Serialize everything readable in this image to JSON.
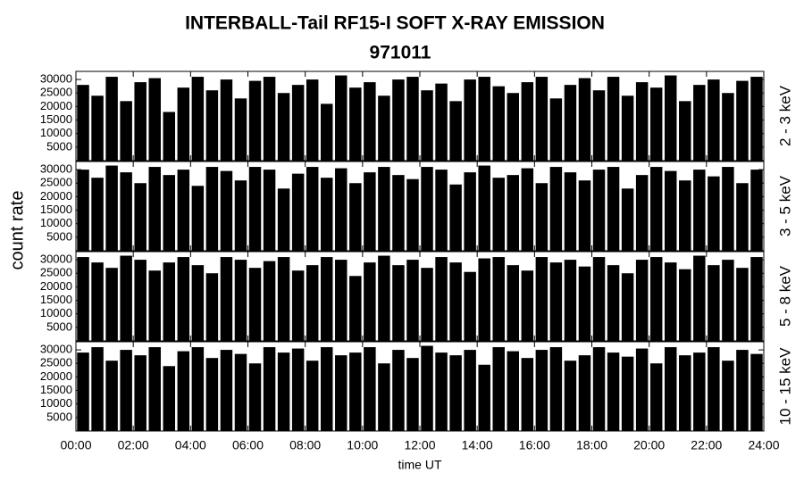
{
  "title": "INTERBALL-Tail RF15-I SOFT X-RAY EMISSION",
  "subtitle": "971011",
  "ylabel": "count rate",
  "xlabel": "time UT",
  "chart_data": [
    {
      "type": "bar",
      "label": "2 - 3 keV",
      "color": "#000000",
      "ylim": [
        0,
        33000
      ],
      "yticks": [
        5000,
        10000,
        15000,
        20000,
        25000,
        30000
      ],
      "xlim": [
        0,
        24
      ],
      "x": [
        0,
        0.5,
        1,
        1.5,
        2,
        2.5,
        3,
        3.5,
        4,
        4.5,
        5,
        5.5,
        6,
        6.5,
        7,
        7.5,
        8,
        8.5,
        9,
        9.5,
        10,
        10.5,
        11,
        11.5,
        12,
        12.5,
        13,
        13.5,
        14,
        14.5,
        15,
        15.5,
        16,
        16.5,
        17,
        17.5,
        18,
        18.5,
        19,
        19.5,
        20,
        20.5,
        21,
        21.5,
        22,
        22.5,
        23,
        23.5
      ],
      "values": [
        28000,
        24000,
        31000,
        22000,
        29000,
        30500,
        18000,
        27000,
        31000,
        26000,
        30000,
        23000,
        29500,
        31000,
        25000,
        28000,
        30000,
        21000,
        31500,
        27000,
        29000,
        24000,
        30000,
        31000,
        26000,
        28500,
        22000,
        30000,
        31000,
        27500,
        25000,
        29000,
        31000,
        23000,
        28000,
        30500,
        26000,
        31000,
        24000,
        29000,
        27000,
        31500,
        22000,
        28000,
        30000,
        25000,
        29500,
        31000
      ]
    },
    {
      "type": "bar",
      "label": "3 - 5 keV",
      "color": "#000000",
      "ylim": [
        0,
        33000
      ],
      "yticks": [
        5000,
        10000,
        15000,
        20000,
        25000,
        30000
      ],
      "xlim": [
        0,
        24
      ],
      "x": [
        0,
        0.5,
        1,
        1.5,
        2,
        2.5,
        3,
        3.5,
        4,
        4.5,
        5,
        5.5,
        6,
        6.5,
        7,
        7.5,
        8,
        8.5,
        9,
        9.5,
        10,
        10.5,
        11,
        11.5,
        12,
        12.5,
        13,
        13.5,
        14,
        14.5,
        15,
        15.5,
        16,
        16.5,
        17,
        17.5,
        18,
        18.5,
        19,
        19.5,
        20,
        20.5,
        21,
        21.5,
        22,
        22.5,
        23,
        23.5
      ],
      "values": [
        30000,
        27000,
        31500,
        29000,
        25000,
        31000,
        28000,
        30000,
        24000,
        31000,
        29500,
        26000,
        31000,
        30000,
        23000,
        28500,
        31000,
        27000,
        30500,
        25000,
        29000,
        31000,
        28000,
        26500,
        31000,
        30000,
        24500,
        29000,
        31500,
        27000,
        28000,
        30500,
        25000,
        31000,
        29000,
        26000,
        30000,
        31000,
        23000,
        28000,
        31000,
        29500,
        26000,
        30000,
        27500,
        31000,
        25000,
        30000
      ]
    },
    {
      "type": "bar",
      "label": "5 - 8 keV",
      "color": "#000000",
      "ylim": [
        0,
        33000
      ],
      "yticks": [
        5000,
        10000,
        15000,
        20000,
        25000,
        30000
      ],
      "xlim": [
        0,
        24
      ],
      "x": [
        0,
        0.5,
        1,
        1.5,
        2,
        2.5,
        3,
        3.5,
        4,
        4.5,
        5,
        5.5,
        6,
        6.5,
        7,
        7.5,
        8,
        8.5,
        9,
        9.5,
        10,
        10.5,
        11,
        11.5,
        12,
        12.5,
        13,
        13.5,
        14,
        14.5,
        15,
        15.5,
        16,
        16.5,
        17,
        17.5,
        18,
        18.5,
        19,
        19.5,
        20,
        20.5,
        21,
        21.5,
        22,
        22.5,
        23,
        23.5
      ],
      "values": [
        31000,
        29000,
        27000,
        31500,
        30000,
        26000,
        29000,
        31000,
        28000,
        25000,
        31000,
        30000,
        27000,
        29500,
        31000,
        26000,
        28000,
        31000,
        30000,
        24000,
        29000,
        31500,
        28000,
        30000,
        27000,
        31000,
        29000,
        25500,
        30500,
        31000,
        28000,
        26000,
        31000,
        29000,
        30000,
        27500,
        31000,
        28000,
        25000,
        30000,
        31000,
        29000,
        26500,
        31500,
        28000,
        30000,
        27000,
        31000
      ]
    },
    {
      "type": "bar",
      "label": "10 - 15 keV",
      "color": "#000000",
      "ylim": [
        0,
        33000
      ],
      "yticks": [
        5000,
        10000,
        15000,
        20000,
        25000,
        30000
      ],
      "xlim": [
        0,
        24
      ],
      "x": [
        0,
        0.5,
        1,
        1.5,
        2,
        2.5,
        3,
        3.5,
        4,
        4.5,
        5,
        5.5,
        6,
        6.5,
        7,
        7.5,
        8,
        8.5,
        9,
        9.5,
        10,
        10.5,
        11,
        11.5,
        12,
        12.5,
        13,
        13.5,
        14,
        14.5,
        15,
        15.5,
        16,
        16.5,
        17,
        17.5,
        18,
        18.5,
        19,
        19.5,
        20,
        20.5,
        21,
        21.5,
        22,
        22.5,
        23,
        23.5
      ],
      "values": [
        29000,
        31000,
        26000,
        30000,
        28000,
        31000,
        24000,
        29500,
        31000,
        27000,
        30000,
        28500,
        25000,
        31000,
        29000,
        30500,
        26000,
        31000,
        28000,
        29000,
        31000,
        25000,
        30000,
        27000,
        31500,
        29000,
        28000,
        30000,
        24500,
        31000,
        29500,
        27000,
        30000,
        31000,
        26000,
        28000,
        31000,
        29000,
        27500,
        30500,
        25000,
        31000,
        28000,
        29000,
        31000,
        26000,
        30000,
        28500
      ],
      "xticks": [
        {
          "value": 0,
          "label": "00:00"
        },
        {
          "value": 2,
          "label": "02:00"
        },
        {
          "value": 4,
          "label": "04:00"
        },
        {
          "value": 6,
          "label": "06:00"
        },
        {
          "value": 8,
          "label": "08:00"
        },
        {
          "value": 10,
          "label": "10:00"
        },
        {
          "value": 12,
          "label": "12:00"
        },
        {
          "value": 14,
          "label": "14:00"
        },
        {
          "value": 16,
          "label": "16:00"
        },
        {
          "value": 18,
          "label": "18:00"
        },
        {
          "value": 20,
          "label": "20:00"
        },
        {
          "value": 22,
          "label": "22:00"
        },
        {
          "value": 24,
          "label": "24:00"
        }
      ]
    }
  ]
}
